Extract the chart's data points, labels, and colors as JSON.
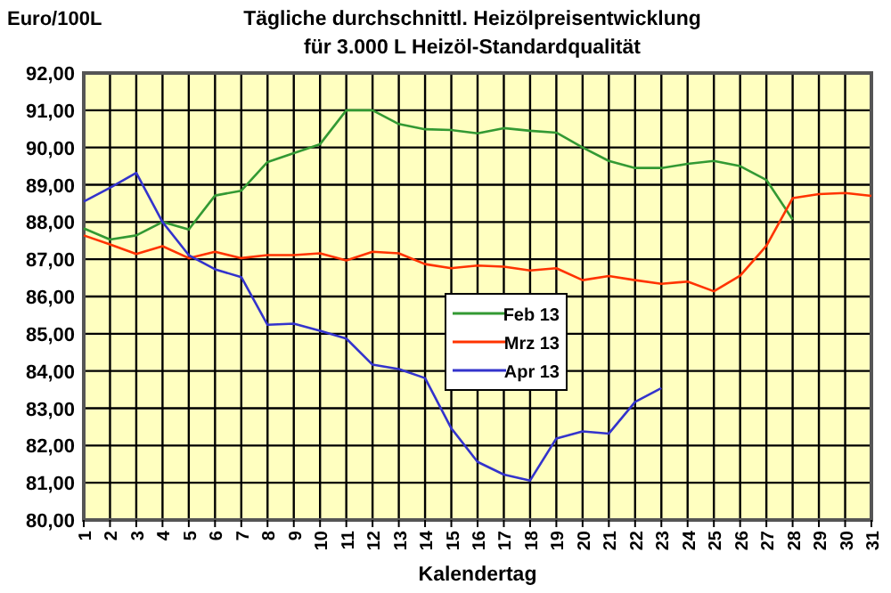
{
  "chart_data": {
    "type": "line",
    "title": "Tägliche durchschnittl. Heizölpreisentwicklung",
    "subtitle": "für 3.000 L Heizöl-Standardqualität",
    "xlabel": "Kalendertag",
    "ylabel": "Euro/100L",
    "categories": [
      "1",
      "2",
      "3",
      "4",
      "5",
      "6",
      "7",
      "8",
      "9",
      "10",
      "11",
      "12",
      "13",
      "14",
      "15",
      "16",
      "17",
      "18",
      "19",
      "20",
      "21",
      "22",
      "23",
      "24",
      "25",
      "26",
      "27",
      "28",
      "29",
      "30",
      "31"
    ],
    "series": [
      {
        "name": "Feb 13",
        "color": "#339933",
        "values": [
          87.83,
          87.53,
          87.64,
          88.0,
          87.8,
          88.71,
          88.84,
          89.61,
          89.85,
          90.09,
          91.0,
          91.0,
          90.63,
          90.49,
          90.47,
          90.38,
          90.52,
          90.45,
          90.4,
          90.0,
          89.64,
          89.45,
          89.45,
          89.56,
          89.64,
          89.5,
          89.13,
          88.07,
          null,
          null,
          null
        ]
      },
      {
        "name": "Mrz 13",
        "color": "#ff3300",
        "values": [
          87.64,
          87.4,
          87.14,
          87.35,
          87.03,
          87.2,
          87.03,
          87.11,
          87.11,
          87.16,
          86.97,
          87.2,
          87.16,
          86.87,
          86.76,
          86.83,
          86.8,
          86.7,
          86.76,
          86.44,
          86.55,
          86.44,
          86.34,
          86.4,
          86.14,
          86.56,
          87.36,
          88.64,
          88.75,
          88.78,
          88.7
        ]
      },
      {
        "name": "Apr 13",
        "color": "#3333cc",
        "values": [
          88.55,
          88.92,
          89.32,
          88.0,
          87.11,
          86.73,
          86.52,
          85.24,
          85.27,
          85.08,
          84.87,
          84.17,
          84.05,
          83.81,
          82.46,
          81.56,
          81.22,
          81.06,
          82.19,
          82.38,
          82.32,
          83.17,
          83.54,
          null,
          null,
          null,
          null,
          null,
          null,
          null,
          null
        ]
      }
    ],
    "ylim": [
      80,
      92
    ],
    "yticks": [
      {
        "value": 80,
        "label": "80,00"
      },
      {
        "value": 81,
        "label": "81,00"
      },
      {
        "value": 82,
        "label": "82,00"
      },
      {
        "value": 83,
        "label": "83,00"
      },
      {
        "value": 84,
        "label": "84,00"
      },
      {
        "value": 85,
        "label": "85,00"
      },
      {
        "value": 86,
        "label": "86,00"
      },
      {
        "value": 87,
        "label": "87,00"
      },
      {
        "value": 88,
        "label": "88,00"
      },
      {
        "value": 89,
        "label": "89,00"
      },
      {
        "value": 90,
        "label": "90,00"
      },
      {
        "value": 91,
        "label": "91,00"
      },
      {
        "value": 92,
        "label": "92,00"
      }
    ],
    "grid": true,
    "legend": "center",
    "marker": "none",
    "line_style": "solid"
  }
}
